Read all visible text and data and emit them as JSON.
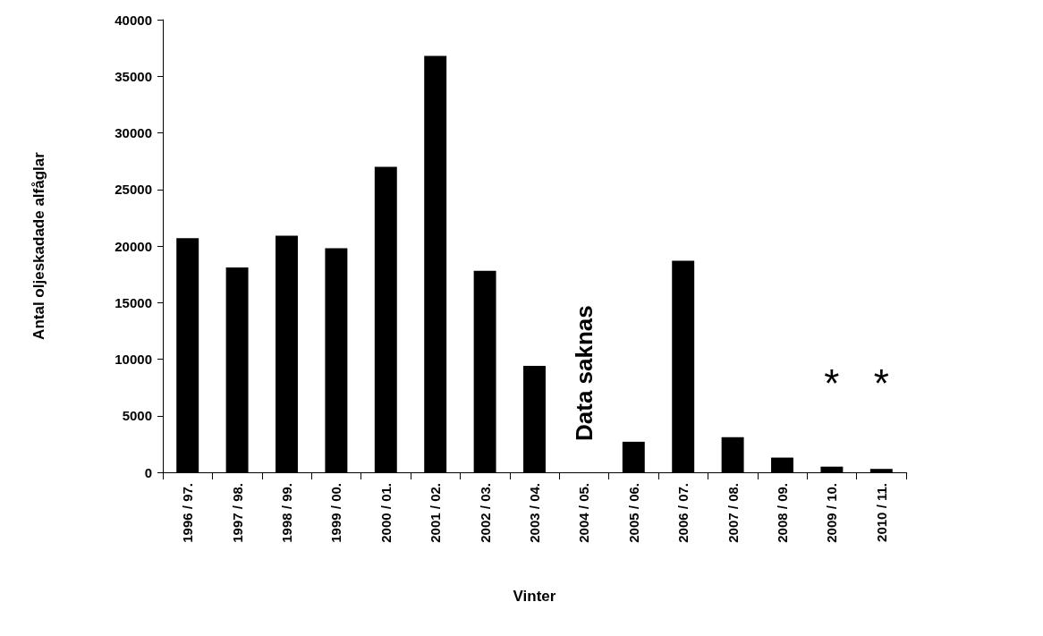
{
  "chart_data": {
    "type": "bar",
    "xlabel": "Vinter",
    "ylabel": "Antal oljeskadade alfåglar",
    "categories": [
      "1996 / 97.",
      "1997 / 98.",
      "1998 / 99.",
      "1999 / 00.",
      "2000 / 01.",
      "2001 / 02.",
      "2002 / 03.",
      "2003 / 04.",
      "2004 / 05.",
      "2005 / 06.",
      "2006 / 07.",
      "2007 / 08.",
      "2008 / 09.",
      "2009 / 10.",
      "2010 / 11."
    ],
    "values": [
      20700,
      18100,
      20900,
      19800,
      27000,
      36800,
      17800,
      9400,
      null,
      2700,
      18700,
      3100,
      1300,
      500,
      300
    ],
    "color": "#000000",
    "ylim": [
      0,
      40000
    ],
    "yticks": [
      0,
      5000,
      10000,
      15000,
      20000,
      25000,
      30000,
      35000,
      40000
    ],
    "grid": false,
    "annotations": [
      "Data saknas",
      "*",
      "*"
    ]
  }
}
